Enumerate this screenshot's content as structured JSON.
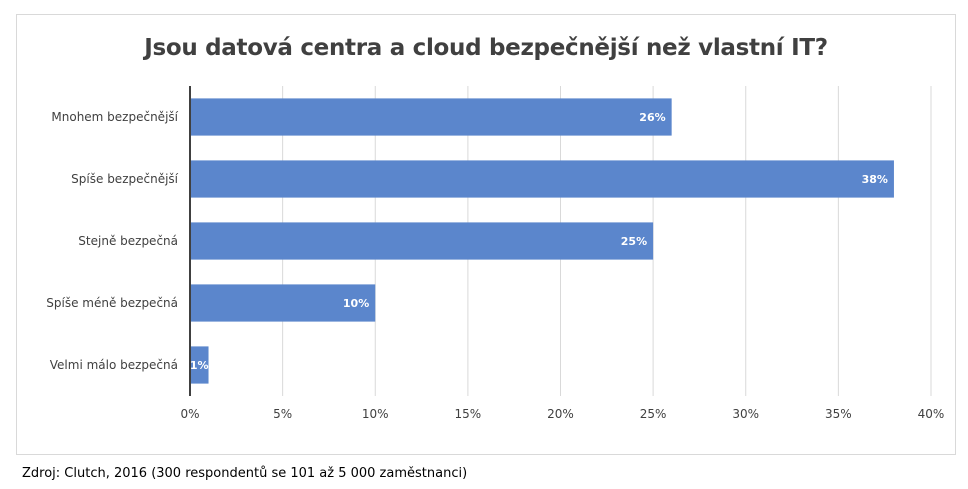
{
  "chart_data": {
    "type": "bar",
    "orientation": "horizontal",
    "title": "Jsou datová centra a cloud bezpečnější než vlastní IT?",
    "categories": [
      "Mnohem bezpečnější",
      "Spíše bezpečnější",
      "Stejně bezpečná",
      "Spíše méně bezpečná",
      "Velmi málo bezpečná"
    ],
    "values": [
      26,
      38,
      25,
      10,
      1
    ],
    "data_labels": [
      "26%",
      "38%",
      "25%",
      "10%",
      "1%"
    ],
    "xlim": [
      0,
      40
    ],
    "xticks": [
      0,
      5,
      10,
      15,
      20,
      25,
      30,
      35,
      40
    ],
    "xtick_labels": [
      "0%",
      "5%",
      "10%",
      "15%",
      "20%",
      "25%",
      "30%",
      "35%",
      "40%"
    ],
    "grid": true,
    "legend": "none",
    "colors": {
      "bar": "#5b86cc",
      "grid": "#d9d9d9",
      "axis": "#404040"
    }
  },
  "source": "Zdroj: Clutch, 2016 (300 respondentů se 101 až 5 000 zaměstnanci)"
}
